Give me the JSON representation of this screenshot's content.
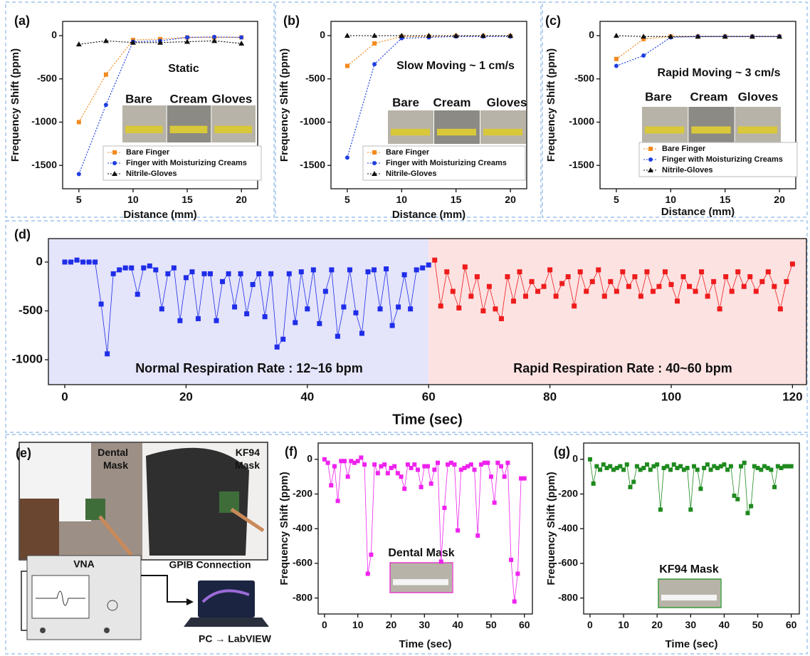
{
  "chart_data": [
    {
      "type": "line",
      "panel_label": "(a)",
      "annotation": "Static",
      "photo_labels": [
        "Bare",
        "Cream",
        "Gloves"
      ],
      "xlabel": "Distance (mm)",
      "ylabel": "Frequency Shift (ppm)",
      "x": [
        5,
        7.5,
        10,
        12.5,
        15,
        17.5,
        20
      ],
      "xlim": [
        3.5,
        21.5
      ],
      "xticks": [
        5,
        10,
        15,
        20
      ],
      "ylim": [
        -1770,
        165
      ],
      "yticks": [
        0,
        -500,
        -1000,
        -1500
      ],
      "legend": "lower right",
      "line_style": "dotted",
      "series": [
        {
          "name": "Bare Finger",
          "color": "#f28a1e",
          "marker": "square",
          "values": [
            -1000,
            -450,
            -50,
            -40,
            -20,
            -20,
            -20
          ]
        },
        {
          "name": "Finger with Moisturizing Creams",
          "color": "#1f3fe0",
          "marker": "circle",
          "values": [
            -1600,
            -800,
            -70,
            -60,
            -20,
            -15,
            -20
          ]
        },
        {
          "name": "Nitrile-Gloves",
          "color": "#111111",
          "marker": "triangle",
          "values": [
            -100,
            -60,
            -80,
            -80,
            -70,
            -60,
            -90
          ]
        }
      ]
    },
    {
      "type": "line",
      "panel_label": "(b)",
      "annotation": "Slow Moving ~ 1 cm/s",
      "photo_labels": [
        "Bare",
        "Cream",
        "Gloves"
      ],
      "xlabel": "Distance (mm)",
      "ylabel": "Frequency Shift (ppm)",
      "x": [
        5,
        7.5,
        10,
        12.5,
        15,
        17.5,
        20
      ],
      "xlim": [
        3.5,
        21.5
      ],
      "xticks": [
        5,
        10,
        15,
        20
      ],
      "ylim": [
        -1770,
        165
      ],
      "yticks": [
        0,
        -500,
        -1000,
        -1500
      ],
      "legend": "lower right",
      "line_style": "dotted",
      "series": [
        {
          "name": "Bare Finger",
          "color": "#f28a1e",
          "marker": "square",
          "values": [
            -350,
            -90,
            -10,
            -10,
            -5,
            -5,
            -5
          ]
        },
        {
          "name": "Finger with Moisturizing Creams",
          "color": "#1f3fe0",
          "marker": "circle",
          "values": [
            -1410,
            -330,
            -30,
            -20,
            -10,
            -10,
            -10
          ]
        },
        {
          "name": "Nitrile-Gloves",
          "color": "#111111",
          "marker": "triangle",
          "values": [
            0,
            0,
            0,
            0,
            0,
            0,
            0
          ]
        }
      ]
    },
    {
      "type": "line",
      "panel_label": "(c)",
      "annotation": "Rapid Moving ~ 3 cm/s",
      "photo_labels": [
        "Bare",
        "Cream",
        "Gloves"
      ],
      "xlabel": "Distance (mm)",
      "ylabel": "Frequency Shift (ppm)",
      "x": [
        5,
        7.5,
        10,
        12.5,
        15,
        17.5,
        20
      ],
      "xlim": [
        3.5,
        21.5
      ],
      "xticks": [
        5,
        10,
        15,
        20
      ],
      "ylim": [
        -1770,
        165
      ],
      "yticks": [
        0,
        -500,
        -1000,
        -1500
      ],
      "legend": "lower right",
      "line_style": "dotted",
      "series": [
        {
          "name": "Bare Finger",
          "color": "#f28a1e",
          "marker": "square",
          "values": [
            -270,
            -40,
            -10,
            -10,
            -10,
            -10,
            -10
          ]
        },
        {
          "name": "Finger with Moisturizing Creams",
          "color": "#1f3fe0",
          "marker": "circle",
          "values": [
            -350,
            -230,
            -20,
            -10,
            -10,
            -10,
            -10
          ]
        },
        {
          "name": "Nitrile-Gloves",
          "color": "#111111",
          "marker": "triangle",
          "values": [
            0,
            -10,
            -10,
            -10,
            -10,
            -10,
            -10
          ]
        }
      ]
    },
    {
      "type": "line",
      "panel_label": "(d)",
      "annotations": [
        "Normal Respiration Rate : 12~16 bpm",
        "Rapid Respiration Rate : 40~60 bpm"
      ],
      "xlabel": "Time (sec)",
      "xlim": [
        -2.7,
        122.3
      ],
      "xticks": [
        0,
        20,
        40,
        60,
        80,
        100,
        120
      ],
      "ylim": [
        -1255,
        240
      ],
      "yticks": [
        0,
        -500,
        -1000
      ],
      "line_style": "solid",
      "regions": [
        {
          "x": [
            -2.7,
            60
          ],
          "color": "#e4e4fb"
        },
        {
          "x": [
            60,
            122.3
          ],
          "color": "#fde2e2"
        }
      ],
      "series": [
        {
          "color": "#1f2de8",
          "marker": "square",
          "x": [
            0,
            1,
            2,
            3,
            4,
            5,
            6,
            7,
            8,
            9,
            10,
            11,
            12,
            13,
            14,
            15,
            16,
            17,
            18,
            19,
            20,
            21,
            22,
            23,
            24,
            25,
            26,
            27,
            28,
            29,
            30,
            31,
            32,
            33,
            34,
            35,
            36,
            37,
            38,
            39,
            40,
            41,
            42,
            43,
            44,
            45,
            46,
            47,
            48,
            49,
            50,
            51,
            52,
            53,
            54,
            55,
            56,
            57,
            58,
            59,
            60
          ],
          "values": [
            0,
            0,
            20,
            0,
            0,
            0,
            -430,
            -940,
            -120,
            -80,
            -60,
            -60,
            -330,
            -60,
            -40,
            -80,
            -480,
            -120,
            -60,
            -600,
            -160,
            -100,
            -580,
            -120,
            -120,
            -600,
            -200,
            -120,
            -460,
            -120,
            -530,
            -230,
            -120,
            -560,
            -120,
            -870,
            -790,
            -120,
            -620,
            -100,
            -480,
            -80,
            -630,
            -300,
            -80,
            -760,
            -460,
            -80,
            -520,
            -730,
            -100,
            -80,
            -480,
            -70,
            -650,
            -460,
            -130,
            -480,
            -80,
            -60,
            -30
          ]
        },
        {
          "color": "#ee1c1c",
          "marker": "square",
          "x": [
            61,
            62,
            63,
            64,
            65,
            66,
            67,
            68,
            69,
            70,
            71,
            72,
            73,
            74,
            75,
            76,
            77,
            78,
            79,
            80,
            81,
            82,
            83,
            84,
            85,
            86,
            87,
            88,
            89,
            90,
            91,
            92,
            93,
            94,
            95,
            96,
            97,
            98,
            99,
            100,
            101,
            102,
            103,
            104,
            105,
            106,
            107,
            108,
            109,
            110,
            111,
            112,
            113,
            114,
            115,
            116,
            117,
            118,
            119,
            120
          ],
          "values": [
            20,
            -450,
            -100,
            -300,
            -470,
            -50,
            -350,
            -150,
            -500,
            -250,
            -480,
            -580,
            -150,
            -400,
            -100,
            -350,
            -200,
            -300,
            -250,
            -80,
            -350,
            -220,
            -150,
            -450,
            -100,
            -300,
            -200,
            -80,
            -350,
            -200,
            -300,
            -100,
            -250,
            -150,
            -350,
            -100,
            -300,
            -250,
            -100,
            -230,
            -400,
            -150,
            -250,
            -300,
            -100,
            -350,
            -200,
            -480,
            -150,
            -300,
            -100,
            -250,
            -150,
            -300,
            -200,
            -100,
            -250,
            -480,
            -200,
            -20
          ]
        }
      ]
    },
    {
      "type": "line",
      "panel_label": "(f)",
      "annotation": "Dental Mask",
      "xlabel": "Time (sec)",
      "ylabel": "Frequency Shift (ppm)",
      "xlim": [
        -1.9,
        62.4
      ],
      "xticks": [
        0,
        10,
        20,
        30,
        40,
        50,
        60
      ],
      "ylim": [
        -892,
        94
      ],
      "yticks": [
        0,
        -200,
        -400,
        -600,
        -800
      ],
      "line_style": "solid",
      "x": [
        0,
        1,
        2,
        3,
        4,
        5,
        6,
        7,
        8,
        9,
        10,
        11,
        12,
        13,
        14,
        15,
        16,
        17,
        18,
        19,
        20,
        21,
        22,
        23,
        24,
        25,
        26,
        27,
        28,
        29,
        30,
        31,
        32,
        33,
        34,
        35,
        36,
        37,
        38,
        39,
        40,
        41,
        42,
        43,
        44,
        45,
        46,
        47,
        48,
        49,
        50,
        51,
        52,
        53,
        54,
        55,
        56,
        57,
        58,
        59,
        60
      ],
      "series": [
        {
          "color": "#ee22ee",
          "marker": "square",
          "values": [
            0,
            -20,
            -150,
            -40,
            -240,
            -10,
            -10,
            -100,
            -10,
            -20,
            -10,
            10,
            -30,
            -660,
            -550,
            -30,
            -80,
            -40,
            -30,
            -80,
            -50,
            -40,
            -80,
            -100,
            -170,
            -30,
            -50,
            -30,
            -60,
            -160,
            -40,
            -40,
            -140,
            -60,
            -20,
            -590,
            -280,
            -30,
            -20,
            -30,
            -410,
            -60,
            -50,
            -40,
            -30,
            -60,
            -440,
            -30,
            -20,
            -20,
            -100,
            -250,
            -20,
            -40,
            -100,
            -20,
            -580,
            -820,
            -660,
            -110,
            -110
          ]
        }
      ]
    },
    {
      "type": "line",
      "panel_label": "(g)",
      "annotation": "KF94 Mask",
      "xlabel": "Time (sec)",
      "ylabel": "Frequency Shift (ppm)",
      "xlim": [
        -1.9,
        62.4
      ],
      "xticks": [
        0,
        10,
        20,
        30,
        40,
        50,
        60
      ],
      "ylim": [
        -892,
        94
      ],
      "yticks": [
        0,
        -200,
        -400,
        -600,
        -800
      ],
      "line_style": "solid",
      "x": [
        0,
        1,
        2,
        3,
        4,
        5,
        6,
        7,
        8,
        9,
        10,
        11,
        12,
        13,
        14,
        15,
        16,
        17,
        18,
        19,
        20,
        21,
        22,
        23,
        24,
        25,
        26,
        27,
        28,
        29,
        30,
        31,
        32,
        33,
        34,
        35,
        36,
        37,
        38,
        39,
        40,
        41,
        42,
        43,
        44,
        45,
        46,
        47,
        48,
        49,
        50,
        51,
        52,
        53,
        54,
        55,
        56,
        57,
        58,
        59,
        60
      ],
      "series": [
        {
          "color": "#1e8a1e",
          "marker": "square",
          "values": [
            0,
            -140,
            -40,
            -60,
            -30,
            -50,
            -40,
            -60,
            -50,
            -40,
            -60,
            -30,
            -160,
            -130,
            -40,
            -60,
            -50,
            -30,
            -60,
            -40,
            -30,
            -290,
            -50,
            -40,
            -60,
            -30,
            -50,
            -40,
            -60,
            -50,
            -290,
            -40,
            -60,
            -170,
            -50,
            -30,
            -60,
            -40,
            -50,
            -40,
            -30,
            -60,
            -40,
            -210,
            -230,
            -40,
            -20,
            -310,
            -270,
            -40,
            -50,
            -60,
            -40,
            -50,
            -60,
            -160,
            -40,
            -50,
            -40,
            -40,
            -40
          ]
        }
      ]
    }
  ],
  "diagram": {
    "panel_label": "(e)",
    "photo_labels": [
      [
        "Dental",
        "Mask"
      ],
      [
        "KF94",
        "Mask"
      ]
    ],
    "instrument": "VNA",
    "connection": "GPIB Connection",
    "computer": "PC → LabVIEW"
  }
}
